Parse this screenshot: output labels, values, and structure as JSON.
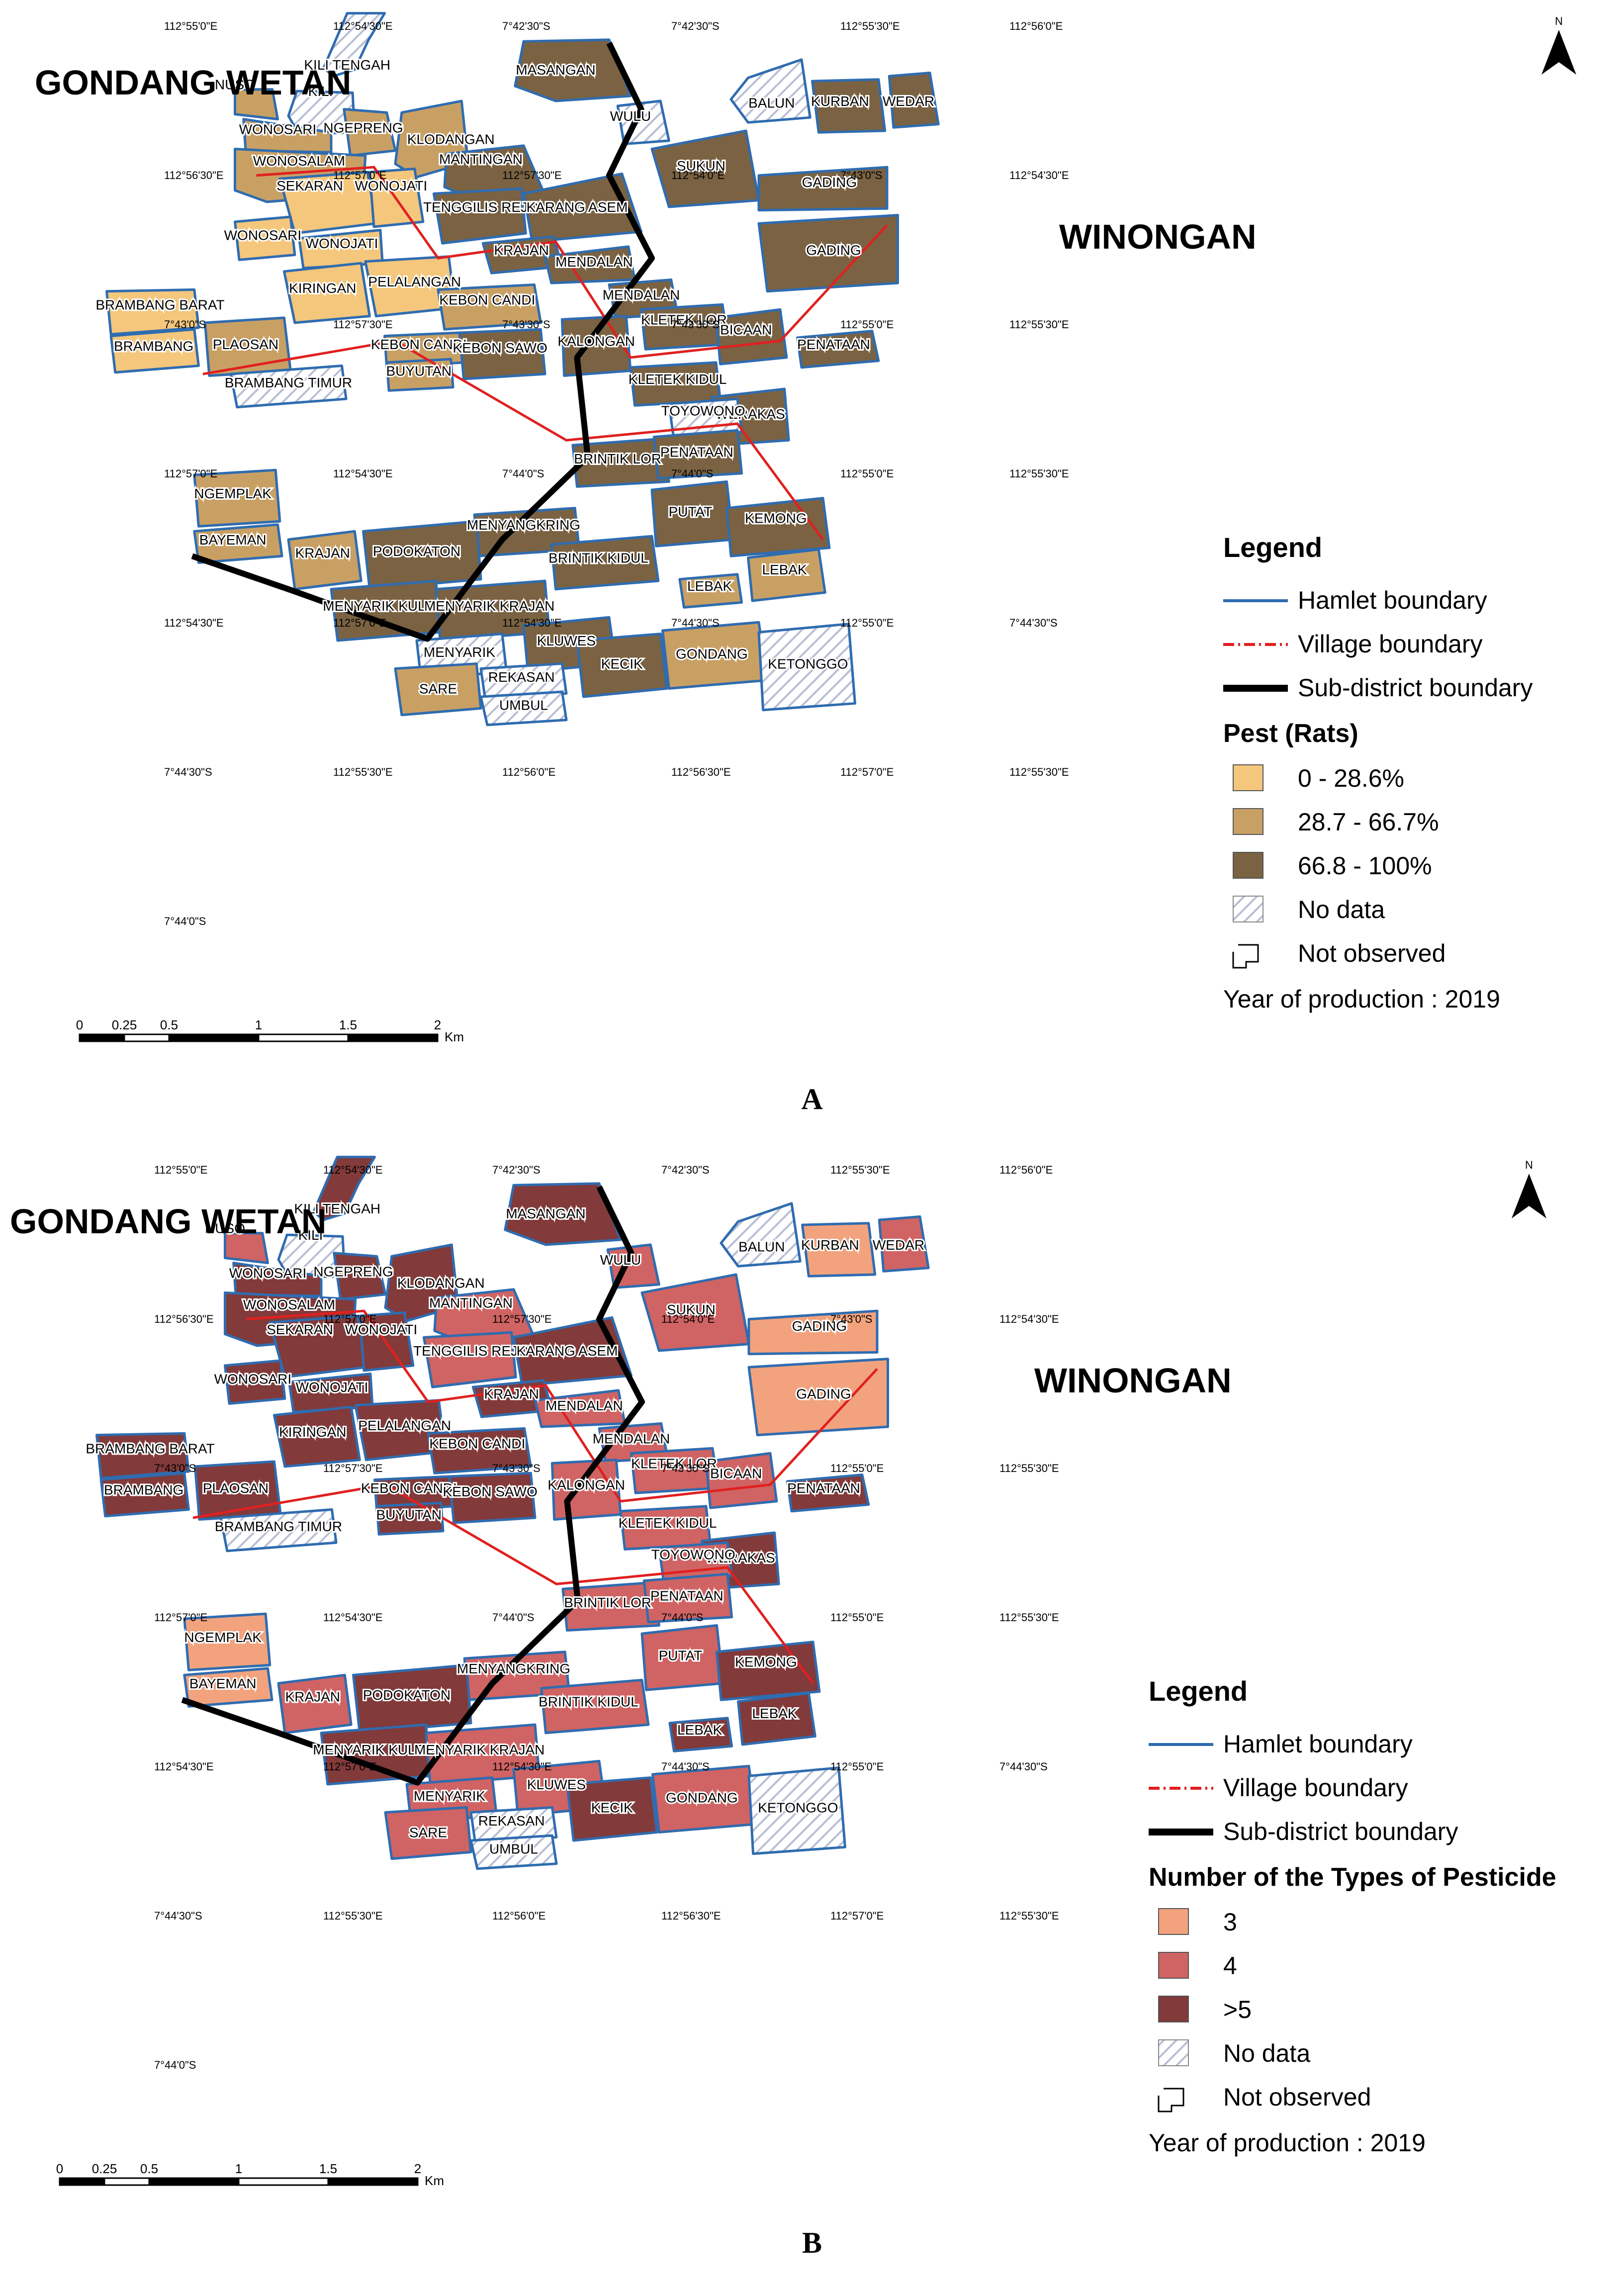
{
  "colors": {
    "rats_low": "#F4C77C",
    "rats_mid": "#C9A064",
    "rats_high": "#7A6242",
    "pest_3": "#F2A37D",
    "pest_4": "#D06363",
    "pest_5": "#823A3A",
    "hamlet_boundary": "#2F6CB0",
    "village_boundary": "#E02020",
    "subdistrict_boundary": "#000000",
    "no_data_hatch": "#B8BFD4"
  },
  "panels": [
    {
      "letter": "A",
      "region_left": "GONDANG WETAN",
      "region_right": "WINONGAN",
      "north": "N",
      "legend": {
        "title": "Legend",
        "hamlet": "Hamlet boundary",
        "village": "Village boundary",
        "subdistrict": "Sub-district boundary",
        "subtitle": "Pest (Rats)",
        "classes": [
          "0 - 28.6%",
          "28.7 - 66.7%",
          "66.8 - 100%"
        ],
        "no_data": "No data",
        "not_observed": "Not observed",
        "year": "Year of production : 2019"
      },
      "scale": {
        "ticks": [
          "0",
          "0.25",
          "0.5",
          "1",
          "1.5",
          "2"
        ],
        "unit": "Km"
      },
      "coords": [
        "112°55'0\"E",
        "112°54'30\"E",
        "7°42'30\"S",
        "7°42'30\"S",
        "112°55'30\"E",
        "112°56'0\"E",
        "112°56'30\"E",
        "112°57'0\"E",
        "112°57'30\"E",
        "112°54'0\"E",
        "7°43'0\"S",
        "112°54'30\"E",
        "7°43'0\"S",
        "112°57'30\"E",
        "7°43'30\"S",
        "7°43'30\"S",
        "112°55'0\"E",
        "112°55'30\"E",
        "112°57'0\"E",
        "112°54'30\"E",
        "7°44'0\"S",
        "7°44'0\"S",
        "112°55'0\"E",
        "112°55'30\"E",
        "112°54'30\"E",
        "112°57'0\"E",
        "112°54'30\"E",
        "7°44'30\"S",
        "112°55'0\"E",
        "7°44'30\"S",
        "7°44'30\"S",
        "112°55'30\"E",
        "112°56'0\"E",
        "112°56'30\"E",
        "112°57'0\"E",
        "112°55'30\"E",
        "7°44'0\"S"
      ],
      "villages": [
        "KILI TENGAH",
        "NUSO",
        "KILI",
        "WONOSARI",
        "NGEPRENG",
        "WONOSALAM",
        "MASANGAN",
        "WULU",
        "BALUN",
        "KURBAN",
        "WEDAR",
        "KLODANGAN",
        "MANTINGAN",
        "SEKARAN",
        "WONOJATI",
        "TENGGILIS REJO",
        "KARANG ASEM",
        "SUKUN",
        "GADING",
        "WONOSARI",
        "WONOJATI",
        "KRAJAN",
        "MENDALAN",
        "GADING",
        "KIRINGAN",
        "PELALANGAN",
        "MENDALAN",
        "BRAMBANG BARAT",
        "KEBON CANDI",
        "KLETEK LOR",
        "BICAAN",
        "KALONGAN",
        "BRAMBANG",
        "PLAOSAN",
        "KEBON CANDI",
        "KEBON SAWO",
        "PENATAAN",
        "BUYUTAN",
        "BRAMBANG TIMUR",
        "KLETEK KIDUL",
        "WERAKAS",
        "TOYOWONO",
        "BRINTIK LOR",
        "PENATAAN",
        "NGEMPLAK",
        "PUTAT",
        "MENYANGKRING",
        "KEMONG",
        "BAYEMAN",
        "KRAJAN",
        "PODOKATON",
        "BRINTIK KIDUL",
        "LEBAK",
        "LEBAK",
        "MENYARIK KULON",
        "MENYARIK KRAJAN",
        "KLUWES",
        "MENYARIK",
        "KECIK",
        "GONDANG",
        "KETONGGO",
        "REKASAN",
        "SARE",
        "UMBUL"
      ]
    },
    {
      "letter": "B",
      "region_left": "GONDANG WETAN",
      "region_right": "WINONGAN",
      "north": "N",
      "legend": {
        "title": "Legend",
        "hamlet": "Hamlet boundary",
        "village": "Village boundary",
        "subdistrict": "Sub-district boundary",
        "subtitle": "Number of the Types of Pesticide",
        "classes": [
          "3",
          "4",
          ">5"
        ],
        "no_data": "No data",
        "not_observed": "Not observed",
        "year": "Year of production : 2019"
      },
      "scale": {
        "ticks": [
          "0",
          "0.25",
          "0.5",
          "1",
          "1.5",
          "2"
        ],
        "unit": "Km"
      },
      "coords": [
        "112°55'0\"E",
        "112°54'30\"E",
        "7°42'30\"S",
        "7°42'30\"S",
        "112°55'30\"E",
        "112°56'0\"E",
        "112°56'30\"E",
        "112°57'0\"E",
        "112°57'30\"E",
        "112°54'0\"E",
        "7°43'0\"S",
        "112°54'30\"E",
        "7°43'0\"S",
        "112°57'30\"E",
        "7°43'30\"S",
        "7°43'30\"S",
        "112°55'0\"E",
        "112°55'30\"E",
        "112°57'0\"E",
        "112°54'30\"E",
        "7°44'0\"S",
        "7°44'0\"S",
        "112°55'0\"E",
        "112°55'30\"E",
        "112°54'30\"E",
        "112°57'0\"E",
        "112°54'30\"E",
        "7°44'30\"S",
        "112°55'0\"E",
        "7°44'30\"S",
        "7°44'30\"S",
        "112°55'30\"E",
        "112°56'0\"E",
        "112°56'30\"E",
        "112°57'0\"E",
        "112°55'30\"E",
        "7°44'0\"S"
      ],
      "villages": [
        "KILI TENGAH",
        "NUSO",
        "KILI",
        "WONOSARI",
        "NGEPRENG",
        "WONOSALAM",
        "MASANGAN",
        "WULU",
        "BALUN",
        "KURBAN",
        "WEDAR",
        "KLODANGAN",
        "MANTINGAN",
        "SEKARAN",
        "WONOJATI",
        "TENGGILIS REJO",
        "KARANG ASEM",
        "SUKUN",
        "GADING",
        "WONOSARI",
        "WONOJATI",
        "KRAJAN",
        "MENDALAN",
        "GADING",
        "KIRINGAN",
        "PELALANGAN",
        "MENDALAN",
        "BRAMBANG BARAT",
        "KEBON CANDI",
        "KLETEK LOR",
        "BICAAN",
        "KALONGAN",
        "BRAMBANG",
        "PLAOSAN",
        "KEBON CANDI",
        "KEBON SAWO",
        "PENATAAN",
        "BUYUTAN",
        "BRAMBANG TIMUR",
        "KLETEK KIDUL",
        "WERAKAS",
        "TOYOWONO",
        "BRINTIK LOR",
        "PENATAAN",
        "NGEMPLAK",
        "PUTAT",
        "MENYANGKRING",
        "KEMONG",
        "BAYEMAN",
        "KRAJAN",
        "PODOKATON",
        "BRINTIK KIDUL",
        "LEBAK",
        "LEBAK",
        "MENYARIK KULON",
        "MENYARIK KRAJAN",
        "KLUWES",
        "MENYARIK",
        "KECIK",
        "GONDANG",
        "KETONGGO",
        "REKASAN",
        "SARE",
        "UMBUL"
      ]
    }
  ]
}
